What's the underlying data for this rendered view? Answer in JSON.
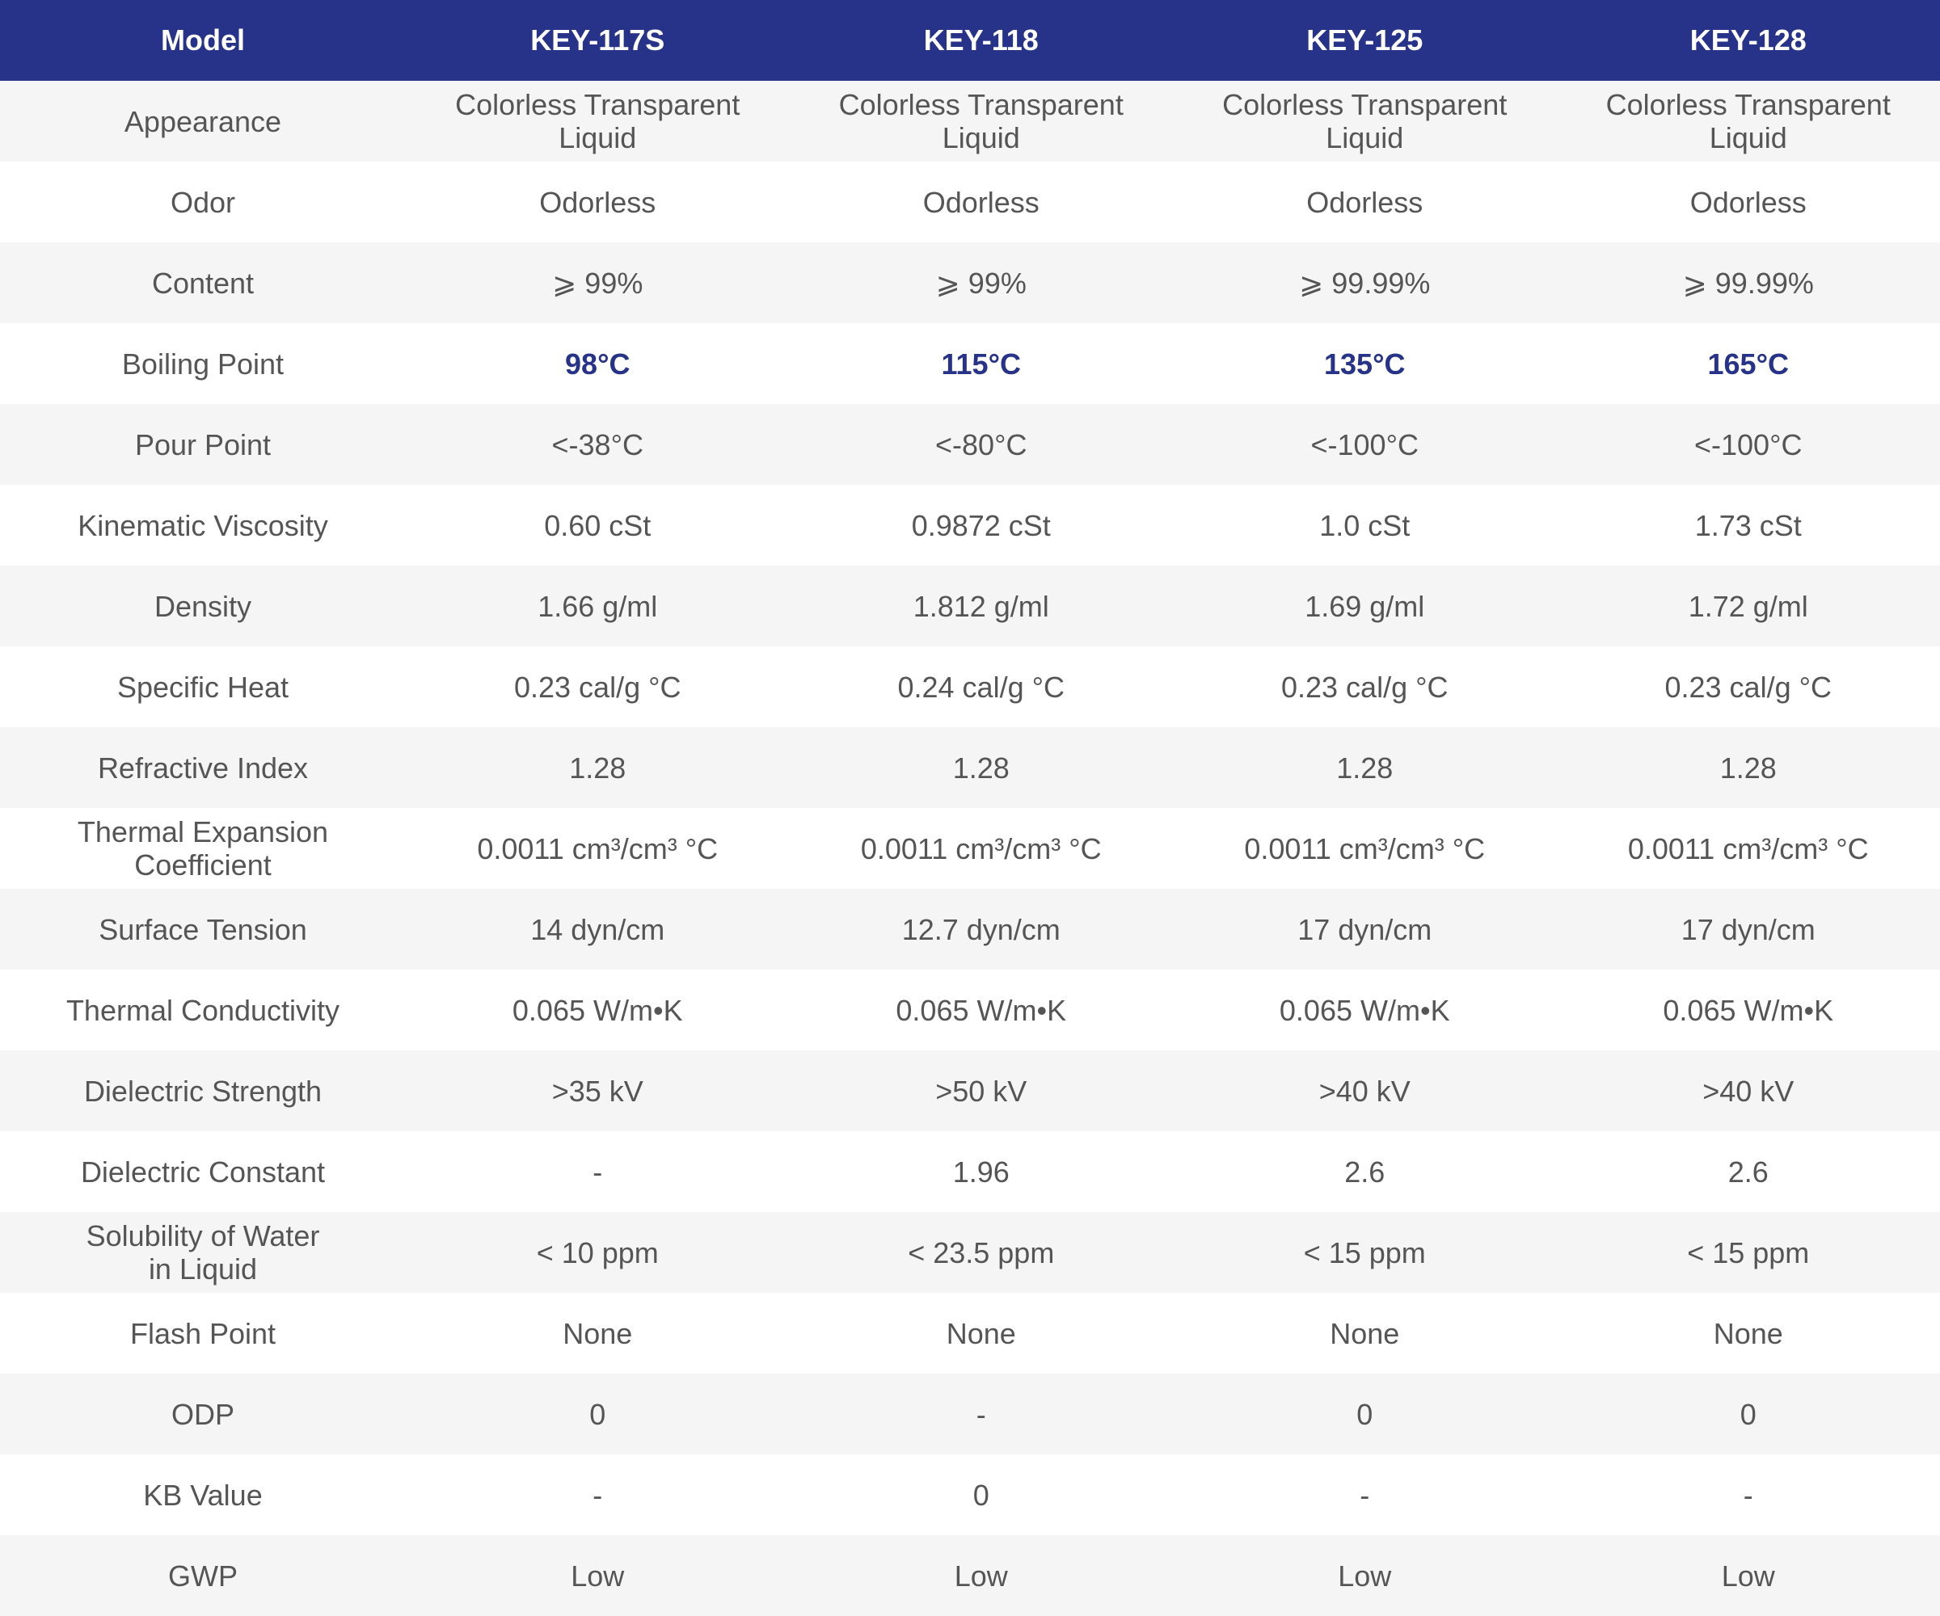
{
  "header": [
    "Model",
    "KEY-117S",
    "KEY-118",
    "KEY-125",
    "KEY-128"
  ],
  "accent_color": "#263389",
  "rows": [
    {
      "label": "Appearance",
      "values": [
        "Colorless Transparent\nLiquid",
        "Colorless Transparent\nLiquid",
        "Colorless Transparent\nLiquid",
        "Colorless Transparent\nLiquid"
      ]
    },
    {
      "label": "Odor",
      "values": [
        "Odorless",
        "Odorless",
        "Odorless",
        "Odorless"
      ]
    },
    {
      "label": "Content",
      "values": [
        "⩾ 99%",
        "⩾ 99%",
        "⩾ 99.99%",
        "⩾ 99.99%"
      ]
    },
    {
      "label": "Boiling Point",
      "values": [
        "98°C",
        "115°C",
        "135°C",
        "165°C"
      ],
      "accent": true
    },
    {
      "label": "Pour Point",
      "values": [
        "<-38°C",
        "<-80°C",
        "<-100°C",
        "<-100°C"
      ]
    },
    {
      "label": "Kinematic Viscosity",
      "values": [
        "0.60 cSt",
        "0.9872 cSt",
        "1.0 cSt",
        "1.73 cSt"
      ]
    },
    {
      "label": "Density",
      "values": [
        "1.66 g/ml",
        "1.812 g/ml",
        "1.69 g/ml",
        "1.72 g/ml"
      ]
    },
    {
      "label": "Specific Heat",
      "values": [
        "0.23 cal/g °C",
        "0.24 cal/g °C",
        "0.23 cal/g °C",
        "0.23 cal/g °C"
      ]
    },
    {
      "label": "Refractive Index",
      "values": [
        "1.28",
        "1.28",
        "1.28",
        "1.28"
      ]
    },
    {
      "label": "Thermal Expansion\nCoefficient",
      "values": [
        "0.0011 cm³/cm³ °C",
        "0.0011 cm³/cm³ °C",
        "0.0011 cm³/cm³ °C",
        "0.0011 cm³/cm³ °C"
      ]
    },
    {
      "label": "Surface Tension",
      "values": [
        "14 dyn/cm",
        "12.7 dyn/cm",
        "17 dyn/cm",
        "17 dyn/cm"
      ]
    },
    {
      "label": "Thermal Conductivity",
      "values": [
        "0.065 W/m•K",
        "0.065 W/m•K",
        "0.065 W/m•K",
        "0.065 W/m•K"
      ]
    },
    {
      "label": "Dielectric Strength",
      "values": [
        ">35 kV",
        ">50 kV",
        ">40 kV",
        ">40 kV"
      ]
    },
    {
      "label": "Dielectric Constant",
      "values": [
        "-",
        "1.96",
        "2.6",
        "2.6"
      ]
    },
    {
      "label": "Solubility of Water\nin Liquid",
      "values": [
        "< 10 ppm",
        "< 23.5 ppm",
        "< 15 ppm",
        "< 15 ppm"
      ]
    },
    {
      "label": "Flash Point",
      "values": [
        "None",
        "None",
        "None",
        "None"
      ]
    },
    {
      "label": "ODP",
      "values": [
        "0",
        "-",
        "0",
        "0"
      ]
    },
    {
      "label": "KB Value",
      "values": [
        "-",
        "0",
        "-",
        "-"
      ]
    },
    {
      "label": "GWP",
      "values": [
        "Low",
        "Low",
        "Low",
        "Low"
      ]
    }
  ]
}
